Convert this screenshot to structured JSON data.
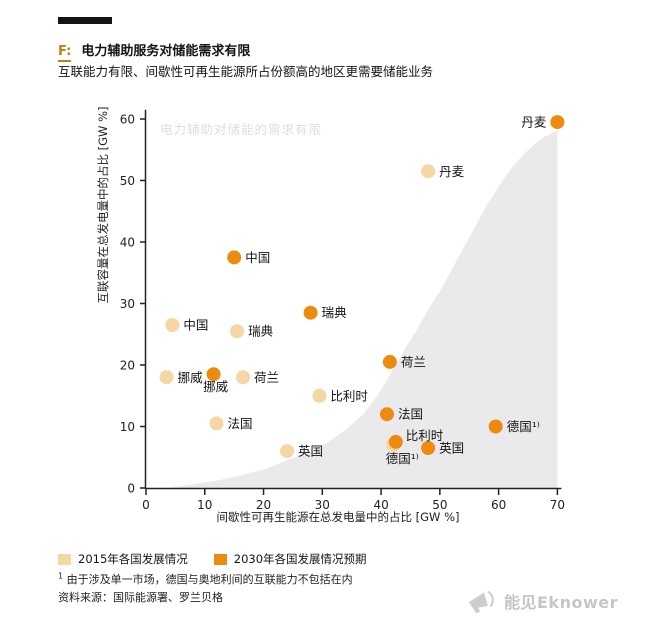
{
  "header": {
    "figure_label": "F:",
    "title": "电力辅助服务对储能需求有限",
    "subtitle": "互联能力有限、间歇性可再生能源所占份额高的地区更需要储能业务"
  },
  "chart_data": {
    "type": "scatter",
    "title": "电力辅助服务对储能需求有限",
    "watermark": "电力辅助对储能的需求有限",
    "xlabel": "间歇性可再生能源在总发电量中的占比 [GW %]",
    "ylabel": "互联容量在总发电量中的占比 [GW %]",
    "xlim": [
      0,
      70
    ],
    "ylim": [
      0,
      60
    ],
    "xticks": [
      0,
      10,
      20,
      30,
      40,
      50,
      60,
      70
    ],
    "yticks": [
      0,
      10,
      20,
      30,
      40,
      50,
      60
    ],
    "grid": false,
    "legend_position": "bottom-left",
    "series": [
      {
        "name": "2015年各国发展情况",
        "color": "#F5D6A4",
        "points": [
          {
            "name": "丹麦",
            "x": 48,
            "y": 51.5,
            "label_pos": "right"
          },
          {
            "name": "中国",
            "x": 4.5,
            "y": 26.5,
            "label_pos": "right"
          },
          {
            "name": "瑞典",
            "x": 15.5,
            "y": 25.5,
            "label_pos": "right"
          },
          {
            "name": "挪威",
            "x": 3.5,
            "y": 18,
            "label_pos": "right"
          },
          {
            "name": "荷兰",
            "x": 16.5,
            "y": 18,
            "label_pos": "right"
          },
          {
            "name": "比利时",
            "x": 29.5,
            "y": 15,
            "label_pos": "right"
          },
          {
            "name": "法国",
            "x": 12,
            "y": 10.5,
            "label_pos": "right"
          },
          {
            "name": "德国¹⁾",
            "x": 42,
            "y": 7,
            "label_pos": "below-left"
          },
          {
            "name": "英国",
            "x": 24,
            "y": 6,
            "label_pos": "right"
          }
        ]
      },
      {
        "name": "2030年各国发展情况预期",
        "color": "#ED8B0F",
        "points": [
          {
            "name": "丹麦",
            "x": 70,
            "y": 59.5,
            "label_pos": "left"
          },
          {
            "name": "中国",
            "x": 15,
            "y": 37.5,
            "label_pos": "right"
          },
          {
            "name": "瑞典",
            "x": 28,
            "y": 28.5,
            "label_pos": "right"
          },
          {
            "name": "荷兰",
            "x": 41.5,
            "y": 20.5,
            "label_pos": "right"
          },
          {
            "name": "挪威",
            "x": 11.5,
            "y": 18.5,
            "label_pos": "below"
          },
          {
            "name": "法国",
            "x": 41,
            "y": 12,
            "label_pos": "right"
          },
          {
            "name": "德国¹⁾",
            "x": 59.5,
            "y": 10,
            "label_pos": "right"
          },
          {
            "name": "比利时",
            "x": 42.5,
            "y": 7.5,
            "label_pos": "above-right"
          },
          {
            "name": "英国",
            "x": 48,
            "y": 6.5,
            "label_pos": "right"
          }
        ]
      }
    ],
    "area_curve": {
      "color": "#EAEAEC",
      "points": [
        [
          4,
          0
        ],
        [
          8,
          0.6
        ],
        [
          12,
          1.2
        ],
        [
          16,
          2
        ],
        [
          20,
          3
        ],
        [
          24,
          4.5
        ],
        [
          28,
          6
        ],
        [
          31,
          7.5
        ],
        [
          34,
          9.5
        ],
        [
          37,
          12
        ],
        [
          39,
          14.5
        ],
        [
          41,
          17.5
        ],
        [
          42.5,
          20
        ],
        [
          44,
          22.5
        ],
        [
          46,
          25.5
        ],
        [
          48,
          29
        ],
        [
          50,
          32
        ],
        [
          52,
          35.5
        ],
        [
          54,
          39
        ],
        [
          56,
          42.5
        ],
        [
          58,
          46
        ],
        [
          60,
          49
        ],
        [
          62,
          51.8
        ],
        [
          64,
          54
        ],
        [
          66,
          55.8
        ],
        [
          68,
          57.2
        ],
        [
          70,
          58.2
        ]
      ]
    }
  },
  "legend": {
    "items": [
      {
        "label": "2015年各国发展情况",
        "color": "#F5D6A4"
      },
      {
        "label": "2030年各国发展情况预期",
        "color": "#ED8B0F"
      }
    ]
  },
  "footer": {
    "footnote_mark": "1",
    "footnote_text": " 由于涉及单一市场，德国与奥地利间的互联能力不包括在内",
    "source": "资料来源：国际能源署、罗兰贝格",
    "logo_text": "能见Eknower",
    "logo_icon": "megaphone-icon"
  },
  "colors": {
    "accent_2015": "#F5D6A4",
    "accent_2030": "#ED8B0F",
    "area": "#EAEAEC",
    "watermark_text": "#DEDEE0",
    "axis": "#222222",
    "figure_label_accent": "#BE7E18",
    "logo_gray": "#c6c6c8"
  }
}
